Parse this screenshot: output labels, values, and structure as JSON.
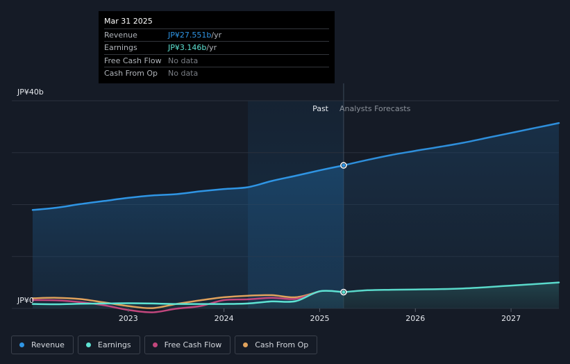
{
  "chart_data": {
    "type": "area",
    "y_axis": {
      "top_label": "JP¥40b",
      "bottom_label": "JP¥0",
      "ylim": [
        0,
        40
      ]
    },
    "x_ticks": [
      {
        "label": "2023",
        "value": 2023.0
      },
      {
        "label": "2024",
        "value": 2024.0
      },
      {
        "label": "2025",
        "value": 2025.0
      },
      {
        "label": "2026",
        "value": 2026.0
      },
      {
        "label": "2027",
        "value": 2027.0
      }
    ],
    "xlim": [
      2021.78,
      2027.5
    ],
    "past_label": "Past",
    "forecast_label": "Analysts Forecasts",
    "past_region_start": 2024.25,
    "divider_x": 2025.25,
    "series": [
      {
        "name": "Revenue",
        "color": "#2f95e4",
        "past": [
          [
            2022.0,
            18.95
          ],
          [
            2022.25,
            19.4
          ],
          [
            2022.5,
            20.1
          ],
          [
            2022.75,
            20.7
          ],
          [
            2023.0,
            21.3
          ],
          [
            2023.25,
            21.75
          ],
          [
            2023.5,
            22.0
          ],
          [
            2023.75,
            22.55
          ],
          [
            2024.0,
            23.0
          ],
          [
            2024.25,
            23.35
          ],
          [
            2024.5,
            24.55
          ],
          [
            2024.75,
            25.55
          ],
          [
            2025.0,
            26.6
          ],
          [
            2025.25,
            27.551
          ]
        ],
        "forecast": [
          [
            2025.25,
            27.551
          ],
          [
            2025.5,
            28.6
          ],
          [
            2025.75,
            29.55
          ],
          [
            2026.0,
            30.35
          ],
          [
            2026.25,
            31.1
          ],
          [
            2026.5,
            31.9
          ],
          [
            2026.75,
            32.85
          ],
          [
            2027.0,
            33.8
          ],
          [
            2027.25,
            34.75
          ],
          [
            2027.5,
            35.7
          ]
        ]
      },
      {
        "name": "Earnings",
        "color": "#5ee3d3",
        "past": [
          [
            2022.0,
            0.85
          ],
          [
            2022.25,
            0.8
          ],
          [
            2022.5,
            0.9
          ],
          [
            2022.75,
            0.95
          ],
          [
            2023.0,
            1.0
          ],
          [
            2023.25,
            0.95
          ],
          [
            2023.5,
            0.85
          ],
          [
            2023.75,
            0.85
          ],
          [
            2024.0,
            0.85
          ],
          [
            2024.25,
            0.95
          ],
          [
            2024.5,
            1.35
          ],
          [
            2024.75,
            1.4
          ],
          [
            2025.0,
            3.3
          ],
          [
            2025.25,
            3.146
          ]
        ],
        "forecast": [
          [
            2025.25,
            3.146
          ],
          [
            2025.5,
            3.5
          ],
          [
            2025.75,
            3.6
          ],
          [
            2026.0,
            3.65
          ],
          [
            2026.5,
            3.85
          ],
          [
            2027.0,
            4.4
          ],
          [
            2027.5,
            5.0
          ]
        ]
      },
      {
        "name": "Free Cash Flow",
        "color": "#c2477d",
        "past": [
          [
            2022.0,
            1.6
          ],
          [
            2022.25,
            1.55
          ],
          [
            2022.5,
            1.2
          ],
          [
            2022.75,
            0.6
          ],
          [
            2023.0,
            -0.3
          ],
          [
            2023.25,
            -0.75
          ],
          [
            2023.5,
            -0.05
          ],
          [
            2023.75,
            0.45
          ],
          [
            2024.0,
            1.6
          ],
          [
            2024.25,
            1.75
          ],
          [
            2024.5,
            2.05
          ],
          [
            2024.75,
            1.85
          ],
          [
            2025.0,
            3.3
          ]
        ],
        "forecast": []
      },
      {
        "name": "Cash From Op",
        "color": "#e0a25c",
        "past": [
          [
            2022.0,
            1.95
          ],
          [
            2022.25,
            2.05
          ],
          [
            2022.5,
            1.8
          ],
          [
            2022.75,
            1.15
          ],
          [
            2023.0,
            0.45
          ],
          [
            2023.25,
            0.05
          ],
          [
            2023.5,
            0.85
          ],
          [
            2023.75,
            1.55
          ],
          [
            2024.0,
            2.15
          ],
          [
            2024.25,
            2.45
          ],
          [
            2024.5,
            2.55
          ],
          [
            2024.75,
            2.15
          ],
          [
            2025.0,
            3.3
          ]
        ],
        "forecast": []
      }
    ],
    "highlight_x": 2025.25
  },
  "tooltip": {
    "date": "Mar 31 2025",
    "rows": [
      {
        "label": "Revenue",
        "value": "JP¥27.551b",
        "unit": " /yr",
        "color": "#2f95e4"
      },
      {
        "label": "Earnings",
        "value": "JP¥3.146b",
        "unit": " /yr",
        "color": "#5ee3d3"
      },
      {
        "label": "Free Cash Flow",
        "value": "No data",
        "unit": "",
        "color": ""
      },
      {
        "label": "Cash From Op",
        "value": "No data",
        "unit": "",
        "color": ""
      }
    ]
  },
  "legend": [
    {
      "label": "Revenue",
      "color": "#2f95e4"
    },
    {
      "label": "Earnings",
      "color": "#5ee3d3"
    },
    {
      "label": "Free Cash Flow",
      "color": "#c2477d"
    },
    {
      "label": "Cash From Op",
      "color": "#e0a25c"
    }
  ],
  "colors": {
    "background": "#151b26",
    "grid": "#2b313d",
    "past_band": "#162a3e"
  }
}
